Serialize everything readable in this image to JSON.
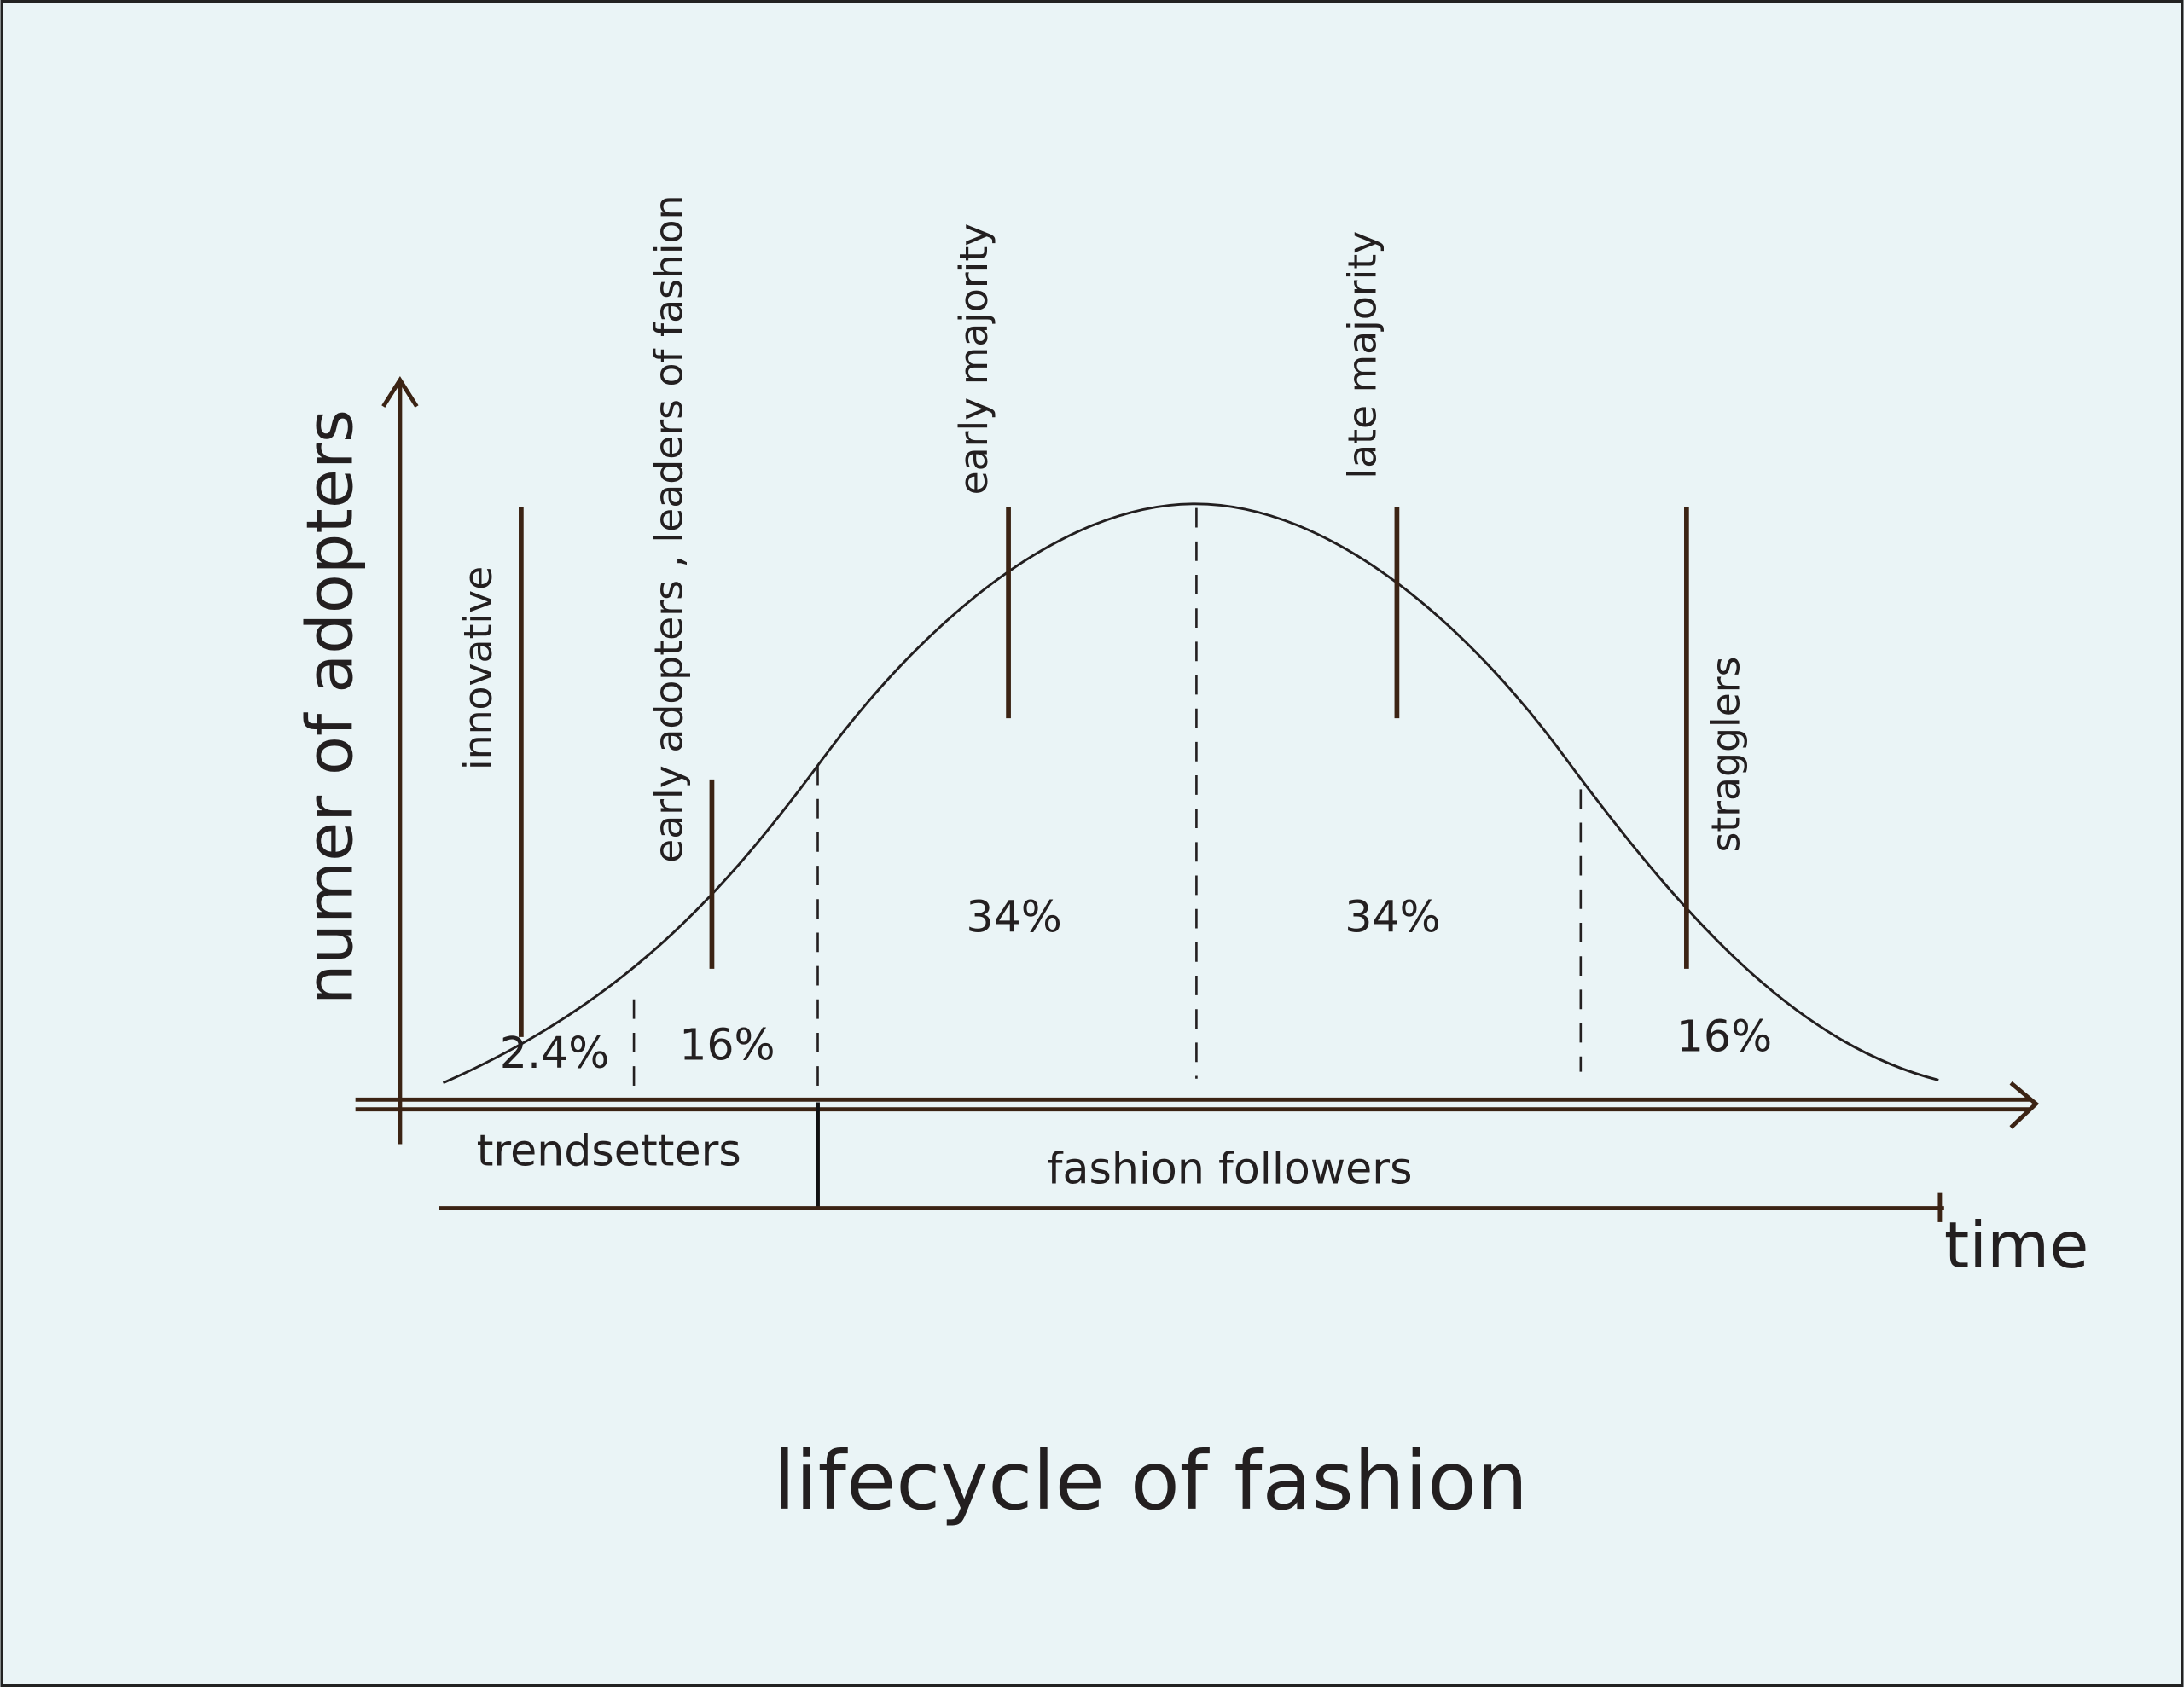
{
  "title": "lifecycle of fashion",
  "axes": {
    "y_label": "numer of adopters",
    "x_label": "time"
  },
  "segments": [
    {
      "label": "innovative",
      "share": "2.4%"
    },
    {
      "label": "early adopters , leaders of fashion",
      "share": "16%"
    },
    {
      "label": "early majority",
      "share": "34%"
    },
    {
      "label": "late majority",
      "share": "34%"
    },
    {
      "label": "stragglers",
      "share": "16%"
    }
  ],
  "groups": [
    "trendsetters",
    "fashion followers"
  ]
}
